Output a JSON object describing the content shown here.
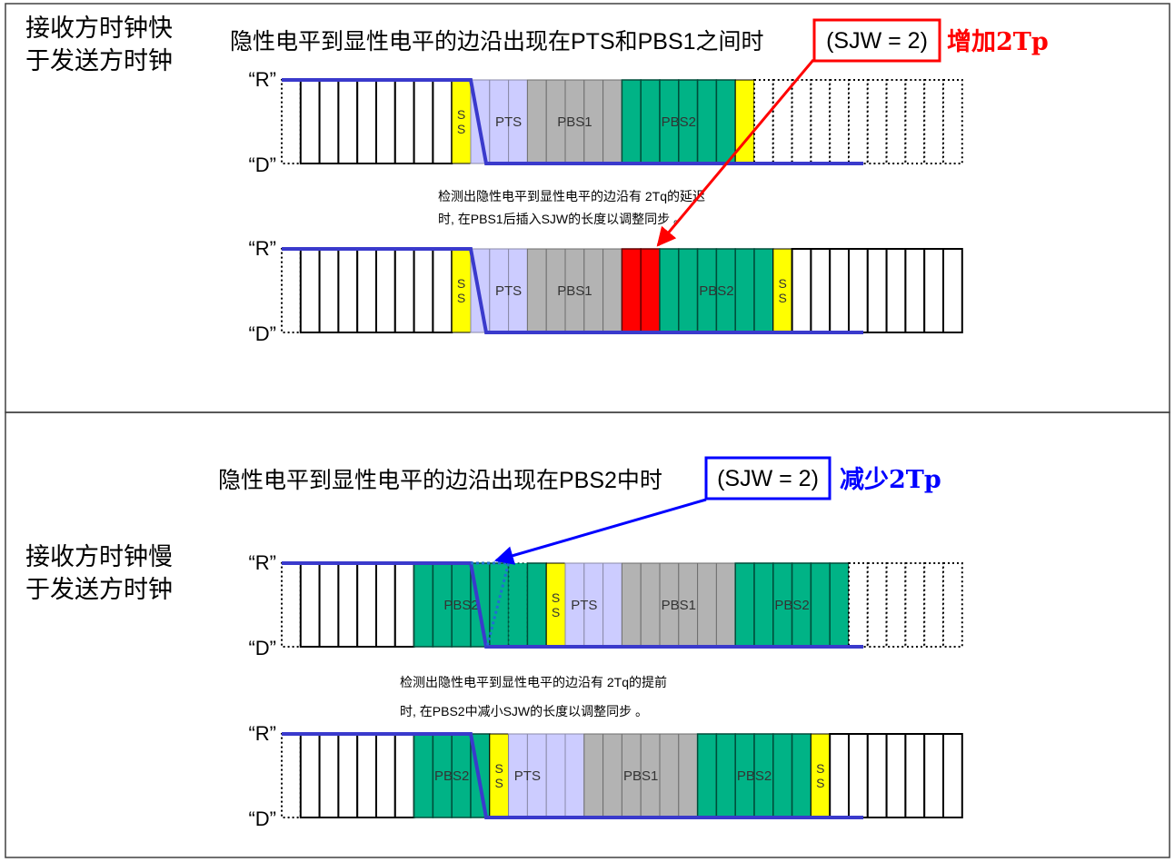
{
  "colors": {
    "sync": "#ffff00",
    "pts": "#ccccff",
    "pbs1": "#b3b3b3",
    "pbs2": "#00b386",
    "sjw_insert": "#ff0000",
    "blank": "#ffffff",
    "signal": "#3a3acc",
    "frame": "#404040",
    "red_accent": "#ff0000",
    "blue_accent": "#0000ff"
  },
  "top": {
    "side_label_line1": "接收方时钟快",
    "side_label_line2": "于发送方时钟",
    "heading": "隐性电平到显性电平的边沿出现在PTS和PBS1之间时",
    "sjw_box": "(SJW = 2)",
    "action": "增加2Tp",
    "note_line1": "检测出隐性电平到显性电平的边沿有   2Tq的延迟",
    "note_line2": "时, 在PBS1后插入SJW的长度以调整同步 。"
  },
  "bottom": {
    "side_label_line1": "接收方时钟慢",
    "side_label_line2": "于发送方时钟",
    "heading": "隐性电平到显性电平的边沿出现在PBS2中时",
    "sjw_box": "(SJW = 2)",
    "action": "减少2Tp",
    "note_line1": "检测出隐性电平到显性电平的边沿有   2Tq的提前",
    "note_line2": "时, 在PBS2中减小SJW的长度以调整同步 。"
  },
  "levels": {
    "r": "“R”",
    "d": "“D”"
  },
  "segments": {
    "ss": "S S",
    "pts": "PTS",
    "pbs1": "PBS1",
    "pbs2": "PBS2"
  },
  "timelines": [
    {
      "id": "top-before",
      "cells": [
        "d",
        "w",
        "w",
        "w",
        "w",
        "w",
        "w",
        "w",
        "w",
        "ss",
        "b",
        "pts",
        "pts",
        "g",
        "g",
        "g",
        "g",
        "g",
        "t",
        "t",
        "t",
        "t",
        "t",
        "t",
        "ss",
        "d",
        "d",
        "d",
        "d",
        "d",
        "d",
        "d",
        "d",
        "d",
        "d",
        "d"
      ],
      "labels": [
        {
          "seg": "ss",
          "start": 9,
          "end": 10
        },
        {
          "seg": "pts",
          "start": 11,
          "end": 13
        },
        {
          "seg": "pbs1",
          "start": 13,
          "end": 18
        },
        {
          "seg": "pbs2",
          "start": 18,
          "end": 24
        }
      ]
    },
    {
      "id": "top-after",
      "cells": [
        "d",
        "w",
        "w",
        "w",
        "w",
        "w",
        "w",
        "w",
        "w",
        "ss",
        "b",
        "pts",
        "pts",
        "g",
        "g",
        "g",
        "g",
        "g",
        "r",
        "r",
        "t",
        "t",
        "t",
        "t",
        "t",
        "t",
        "ss",
        "w",
        "w",
        "w",
        "w",
        "w",
        "w",
        "w",
        "w",
        "w"
      ],
      "labels": [
        {
          "seg": "ss",
          "start": 9,
          "end": 10
        },
        {
          "seg": "pts",
          "start": 11,
          "end": 13
        },
        {
          "seg": "pbs1",
          "start": 13,
          "end": 18
        },
        {
          "seg": "pbs2",
          "start": 20,
          "end": 26
        },
        {
          "seg": "ss",
          "start": 26,
          "end": 27
        }
      ]
    },
    {
      "id": "bottom-before",
      "cells": [
        "d",
        "w",
        "w",
        "w",
        "w",
        "w",
        "w",
        "t",
        "t",
        "t",
        "t",
        "t",
        "td",
        "t",
        "ss",
        "pts",
        "pts",
        "pts",
        "g",
        "g",
        "g",
        "g",
        "g",
        "g",
        "t",
        "t",
        "t",
        "t",
        "t",
        "t",
        "d",
        "d",
        "d",
        "d",
        "d",
        "d"
      ],
      "labels": [
        {
          "seg": "pbs2",
          "start": 7,
          "end": 12
        },
        {
          "seg": "ss",
          "start": 14,
          "end": 15
        },
        {
          "seg": "pts",
          "start": 15,
          "end": 17
        },
        {
          "seg": "pbs1",
          "start": 18,
          "end": 24
        },
        {
          "seg": "pbs2",
          "start": 24,
          "end": 30
        }
      ]
    },
    {
      "id": "bottom-after",
      "cells": [
        "d",
        "w",
        "w",
        "w",
        "w",
        "w",
        "w",
        "t",
        "t",
        "t",
        "t",
        "ss",
        "pts",
        "pts",
        "pts",
        "pts",
        "g",
        "g",
        "g",
        "g",
        "g",
        "g",
        "t",
        "t",
        "t",
        "t",
        "t",
        "t",
        "ss",
        "w",
        "w",
        "w",
        "w",
        "w",
        "w",
        "w"
      ],
      "labels": [
        {
          "seg": "pbs2",
          "start": 7,
          "end": 11
        },
        {
          "seg": "ss",
          "start": 11,
          "end": 12
        },
        {
          "seg": "pts",
          "start": 12,
          "end": 14
        },
        {
          "seg": "pbs1",
          "start": 16,
          "end": 22
        },
        {
          "seg": "pbs2",
          "start": 22,
          "end": 28
        },
        {
          "seg": "ss",
          "start": 28,
          "end": 29
        }
      ]
    }
  ]
}
